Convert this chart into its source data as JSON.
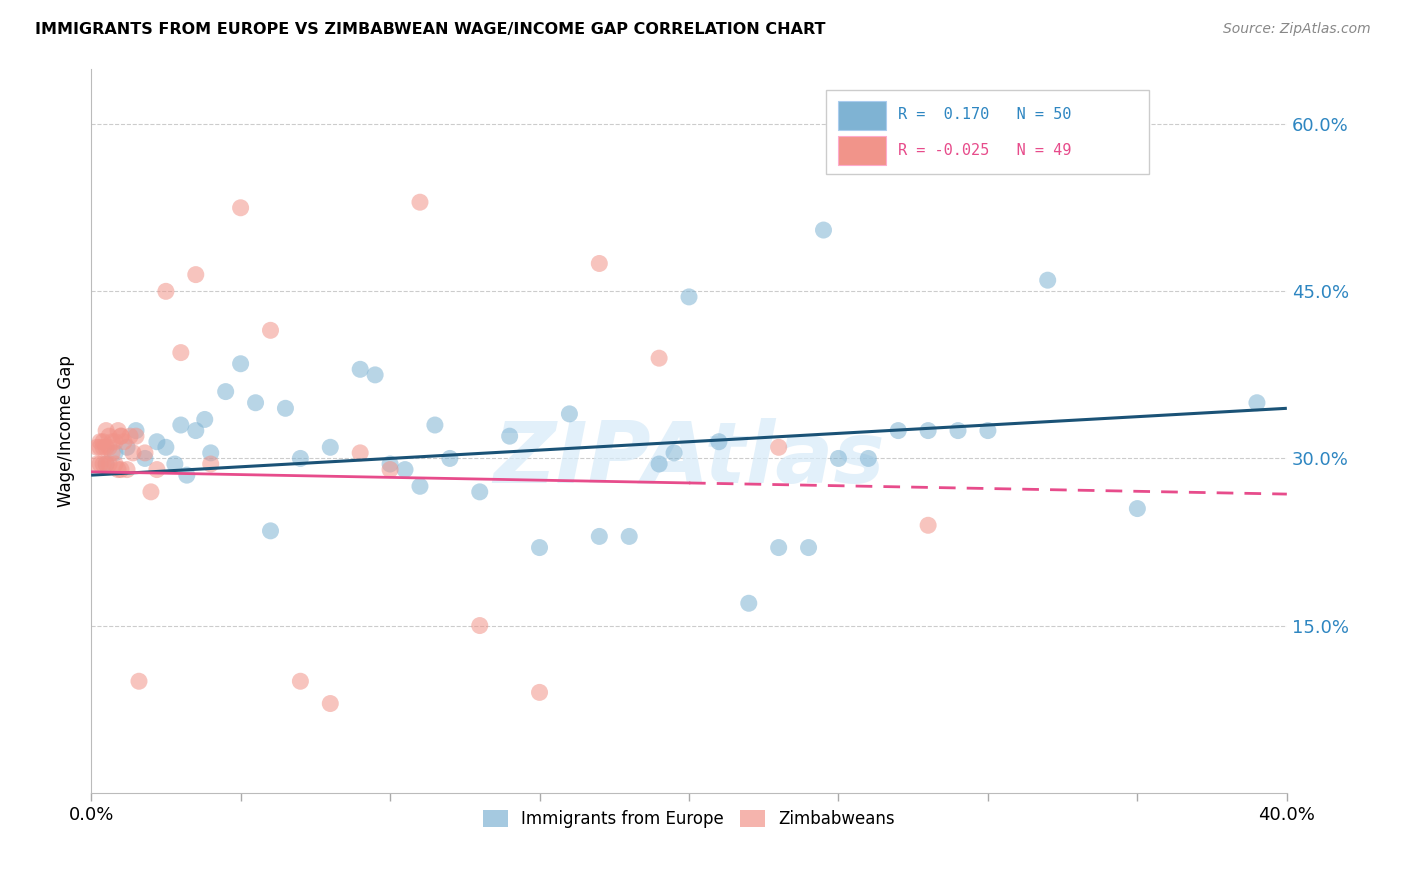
{
  "title": "IMMIGRANTS FROM EUROPE VS ZIMBABWEAN WAGE/INCOME GAP CORRELATION CHART",
  "source": "Source: ZipAtlas.com",
  "ylabel": "Wage/Income Gap",
  "legend_label1": "Immigrants from Europe",
  "legend_label2": "Zimbabweans",
  "R1": 0.17,
  "N1": 50,
  "R2": -0.025,
  "N2": 49,
  "xlim": [
    0.0,
    0.4
  ],
  "ylim": [
    0.0,
    0.65
  ],
  "yticks": [
    0.15,
    0.3,
    0.45,
    0.6
  ],
  "ytick_labels": [
    "15.0%",
    "30.0%",
    "45.0%",
    "60.0%"
  ],
  "xticks": [
    0.0,
    0.05,
    0.1,
    0.15,
    0.2,
    0.25,
    0.3,
    0.35,
    0.4
  ],
  "color_blue": "#7FB3D3",
  "color_pink": "#F1948A",
  "trend_blue": "#1A5276",
  "trend_pink": "#E74C8B",
  "watermark": "ZIPAtlas",
  "blue_trend_start": 0.285,
  "blue_trend_end": 0.345,
  "pink_trend_start": 0.288,
  "pink_trend_end": 0.268,
  "blue_x": [
    0.005,
    0.008,
    0.012,
    0.015,
    0.018,
    0.022,
    0.025,
    0.028,
    0.03,
    0.032,
    0.035,
    0.038,
    0.04,
    0.045,
    0.05,
    0.055,
    0.06,
    0.065,
    0.07,
    0.08,
    0.09,
    0.095,
    0.1,
    0.105,
    0.11,
    0.115,
    0.12,
    0.13,
    0.14,
    0.15,
    0.16,
    0.17,
    0.18,
    0.19,
    0.195,
    0.2,
    0.21,
    0.22,
    0.23,
    0.24,
    0.245,
    0.25,
    0.26,
    0.27,
    0.28,
    0.29,
    0.3,
    0.32,
    0.35,
    0.39
  ],
  "blue_y": [
    0.295,
    0.305,
    0.31,
    0.325,
    0.3,
    0.315,
    0.31,
    0.295,
    0.33,
    0.285,
    0.325,
    0.335,
    0.305,
    0.36,
    0.385,
    0.35,
    0.235,
    0.345,
    0.3,
    0.31,
    0.38,
    0.375,
    0.295,
    0.29,
    0.275,
    0.33,
    0.3,
    0.27,
    0.32,
    0.22,
    0.34,
    0.23,
    0.23,
    0.295,
    0.305,
    0.445,
    0.315,
    0.17,
    0.22,
    0.22,
    0.505,
    0.3,
    0.3,
    0.325,
    0.325,
    0.325,
    0.325,
    0.46,
    0.255,
    0.35
  ],
  "pink_x": [
    0.002,
    0.002,
    0.003,
    0.003,
    0.003,
    0.004,
    0.004,
    0.004,
    0.005,
    0.005,
    0.005,
    0.006,
    0.006,
    0.006,
    0.007,
    0.007,
    0.008,
    0.008,
    0.009,
    0.009,
    0.01,
    0.01,
    0.01,
    0.011,
    0.012,
    0.013,
    0.014,
    0.015,
    0.016,
    0.018,
    0.02,
    0.022,
    0.025,
    0.03,
    0.035,
    0.04,
    0.05,
    0.06,
    0.07,
    0.08,
    0.09,
    0.1,
    0.11,
    0.13,
    0.15,
    0.17,
    0.19,
    0.23,
    0.28
  ],
  "pink_y": [
    0.295,
    0.31,
    0.295,
    0.315,
    0.31,
    0.315,
    0.31,
    0.295,
    0.31,
    0.325,
    0.295,
    0.32,
    0.31,
    0.295,
    0.315,
    0.305,
    0.315,
    0.295,
    0.325,
    0.29,
    0.32,
    0.29,
    0.32,
    0.315,
    0.29,
    0.32,
    0.305,
    0.32,
    0.1,
    0.305,
    0.27,
    0.29,
    0.45,
    0.395,
    0.465,
    0.295,
    0.525,
    0.415,
    0.1,
    0.08,
    0.305,
    0.29,
    0.53,
    0.15,
    0.09,
    0.475,
    0.39,
    0.31,
    0.24
  ]
}
